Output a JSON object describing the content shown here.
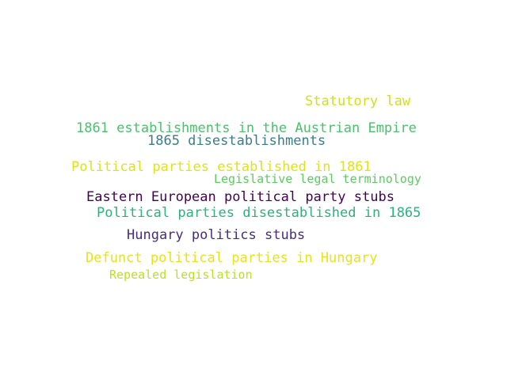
{
  "words": [
    {
      "text": "Statutory law",
      "color": "#d0e11c"
    },
    {
      "text": "1861 establishments in the Austrian Empire",
      "color": "#4ac16d"
    },
    {
      "text": "1865 disestablishments",
      "color": "#3b7c8c"
    },
    {
      "text": "Political parties established in 1861",
      "color": "#dde318"
    },
    {
      "text": "Legislative legal terminology",
      "color": "#5ec962"
    },
    {
      "text": "Eastern European political party stubs",
      "color": "#440154"
    },
    {
      "text": "Political parties disestablished in 1865",
      "color": "#2db27d"
    },
    {
      "text": "Hungary politics stubs",
      "color": "#472d7b"
    },
    {
      "text": "Defunct political parties in Hungary",
      "color": "#e5e419"
    },
    {
      "text": "Repealed legislation",
      "color": "#bddf26"
    }
  ]
}
